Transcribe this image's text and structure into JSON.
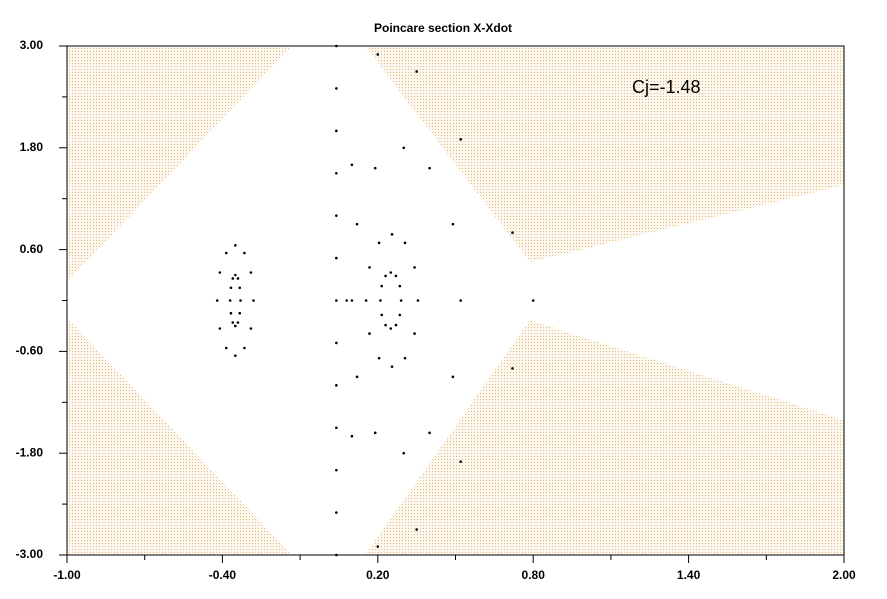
{
  "chart_data": {
    "type": "scatter",
    "title": "Poincare section X-Xdot",
    "annotation": "Cj=-1.48",
    "color": "#000000",
    "xlim": [
      -1,
      2
    ],
    "ylim": [
      -3,
      3
    ],
    "xticks": [
      {
        "value": -1,
        "label": "-1.00"
      },
      {
        "value": -0.4,
        "label": "-0.40"
      },
      {
        "value": 0.2,
        "label": "0.20"
      },
      {
        "value": 0.8,
        "label": "0.80"
      },
      {
        "value": 1.4,
        "label": "1.40"
      },
      {
        "value": 2,
        "label": "2.00"
      }
    ],
    "yticks": [
      {
        "value": -3,
        "label": "-3.00"
      },
      {
        "value": -1.8,
        "label": "-1.80"
      },
      {
        "value": -0.6,
        "label": "-0.60"
      },
      {
        "value": 0.6,
        "label": "0.60"
      },
      {
        "value": 1.8,
        "label": "1.80"
      },
      {
        "value": 3,
        "label": "3.00"
      }
    ],
    "xminorticks": [
      -0.7,
      -0.1,
      0.5,
      1.1,
      1.7
    ],
    "yminorticks": [
      -2.4,
      -1.2,
      0,
      1.2,
      2.4
    ],
    "series": [
      {
        "x": [
          0.29,
          0.285,
          0.27,
          0.25,
          0.23,
          0.215,
          0.21,
          0.215,
          0.23,
          0.25,
          0.27,
          0.285
        ],
        "y": [
          0,
          0.17,
          0.29,
          0.33,
          0.29,
          0.17,
          0,
          -0.17,
          -0.29,
          -0.33,
          -0.29,
          -0.17
        ]
      },
      {
        "x": [
          0.355,
          0.342,
          0.305,
          0.255,
          0.205,
          0.168,
          0.155,
          0.168,
          0.205,
          0.255,
          0.305,
          0.342
        ],
        "y": [
          0,
          0.39,
          0.68,
          0.78,
          0.68,
          0.39,
          0,
          -0.39,
          -0.68,
          -0.78,
          -0.68,
          -0.39
        ]
      },
      {
        "x": [
          0.52,
          0.49,
          0.4,
          0.3,
          0.19,
          0.12,
          0.1,
          0.12,
          0.19,
          0.3,
          0.4,
          0.49
        ],
        "y": [
          0,
          0.9,
          1.56,
          1.8,
          1.56,
          0.9,
          0,
          -0.9,
          -1.56,
          -1.8,
          -1.56,
          -0.9
        ]
      },
      {
        "x": [
          0.8,
          0.72,
          0.52,
          0.35,
          0.2,
          0.1,
          0.08,
          0.1,
          0.2,
          0.35,
          0.52,
          0.72
        ],
        "y": [
          0,
          0.8,
          1.9,
          2.7,
          2.9,
          1.6,
          0,
          -1.6,
          -2.9,
          -2.7,
          -1.9,
          -0.8
        ]
      },
      {
        "x": [
          -0.33,
          -0.333,
          -0.34,
          -0.35,
          -0.36,
          -0.367,
          -0.37,
          -0.367,
          -0.36,
          -0.35,
          -0.34,
          -0.333
        ],
        "y": [
          0,
          0.15,
          0.26,
          0.3,
          0.26,
          0.15,
          0,
          -0.15,
          -0.26,
          -0.3,
          -0.26,
          -0.15
        ]
      },
      {
        "x": [
          -0.28,
          -0.29,
          -0.315,
          -0.35,
          -0.385,
          -0.41,
          -0.42,
          -0.41,
          -0.385,
          -0.35,
          -0.315,
          -0.29
        ],
        "y": [
          0,
          0.33,
          0.56,
          0.65,
          0.56,
          0.33,
          0,
          -0.33,
          -0.56,
          -0.65,
          -0.56,
          -0.33
        ]
      },
      {
        "x": [
          0.04,
          0.04,
          0.04,
          0.04,
          0.04,
          0.04,
          0.04,
          0.04,
          0.04,
          0.04,
          0.04,
          0.04,
          0.04
        ],
        "y": [
          -3,
          -2.5,
          -2,
          -1.5,
          -1,
          -0.5,
          0,
          0.5,
          1,
          1.5,
          2,
          2.5,
          3
        ]
      }
    ]
  }
}
